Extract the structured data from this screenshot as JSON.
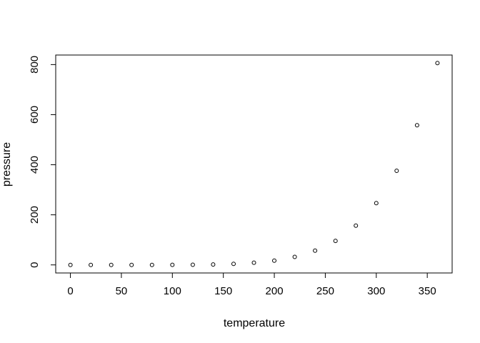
{
  "chart_data": {
    "type": "scatter",
    "title": "",
    "xlabel": "temperature",
    "ylabel": "pressure",
    "x": [
      0,
      20,
      40,
      60,
      80,
      100,
      120,
      140,
      160,
      180,
      200,
      220,
      240,
      260,
      280,
      300,
      320,
      340,
      360
    ],
    "y": [
      0.0002,
      0.0012,
      0.006,
      0.03,
      0.09,
      0.27,
      0.75,
      1.85,
      4.2,
      8.8,
      17.3,
      32.1,
      57,
      96,
      157,
      247,
      376,
      558,
      806
    ],
    "x_ticks": [
      0,
      50,
      100,
      150,
      200,
      250,
      300,
      350
    ],
    "y_ticks": [
      0,
      200,
      400,
      600,
      800
    ],
    "xlim": [
      -14.4,
      374.4
    ],
    "ylim": [
      -32.2,
      838.2
    ],
    "grid": false,
    "legend": null,
    "marker": "open-circle",
    "colors": {
      "background": "#ffffff",
      "foreground": "#000000"
    }
  }
}
